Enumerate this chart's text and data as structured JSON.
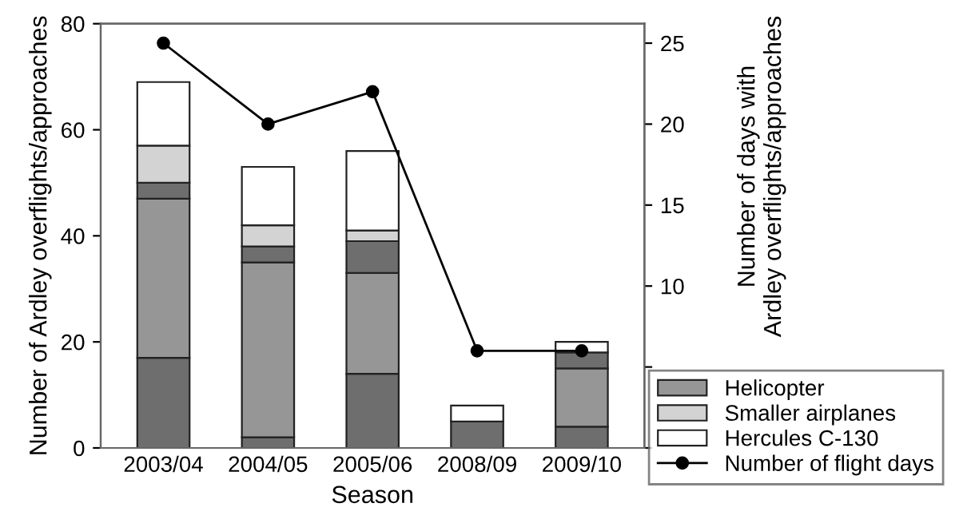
{
  "chart_data": {
    "type": "bar",
    "stacked": true,
    "xlabel": "Season",
    "ylabel": "Number of Ardley overflights/approaches",
    "y2label": "Number of days with\nArdley overflights/approaches",
    "categories": [
      "2003/04",
      "2004/05",
      "2005/06",
      "2008/09",
      "2009/10"
    ],
    "series": [
      {
        "color": "#6e6e6e",
        "values": [
          17,
          2,
          14,
          5,
          4
        ]
      },
      {
        "name": "Helicopter",
        "color": "#969696",
        "values": [
          30,
          33,
          19,
          null,
          11
        ]
      },
      {
        "color": "#6e6e6e",
        "values": [
          3,
          3,
          6,
          null,
          3
        ]
      },
      {
        "name": "Smaller airplanes",
        "color": "#d3d3d3",
        "values": [
          7,
          4,
          2,
          null,
          null
        ]
      },
      {
        "name": "Hercules C-130",
        "color": "#ffffff",
        "values": [
          12,
          11,
          15,
          3,
          2
        ]
      },
      {
        "name": "Number of flight days",
        "type": "line",
        "axis": "y2",
        "color": "#000000",
        "marker": "circle",
        "values": [
          25,
          20,
          22,
          6,
          6
        ]
      }
    ],
    "ylim": [
      0,
      80
    ],
    "yticks": [
      0,
      20,
      40,
      60,
      80
    ],
    "y2lim": [
      0,
      26.2
    ],
    "y2ticks": [
      {
        "value": 0,
        "label": null
      },
      {
        "value": 5,
        "label": null
      },
      10,
      15,
      20,
      25
    ],
    "grid": false,
    "legend": "bottom right"
  }
}
